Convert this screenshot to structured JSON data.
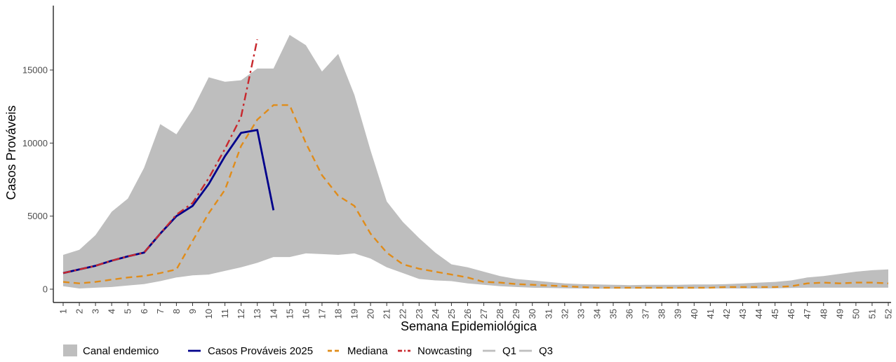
{
  "chart_data": {
    "type": "line",
    "xlabel": "Semana Epidemiológica",
    "ylabel": "Casos Prováveis",
    "x": [
      1,
      2,
      3,
      4,
      5,
      6,
      7,
      8,
      9,
      10,
      11,
      12,
      13,
      14,
      15,
      16,
      17,
      18,
      19,
      20,
      21,
      22,
      23,
      24,
      25,
      26,
      27,
      28,
      29,
      30,
      31,
      32,
      33,
      34,
      35,
      36,
      37,
      38,
      39,
      40,
      41,
      42,
      43,
      44,
      45,
      46,
      47,
      48,
      49,
      50,
      51,
      52
    ],
    "xlim": [
      1,
      52
    ],
    "ylim": [
      0,
      18000
    ],
    "yticks": [
      0,
      5000,
      10000,
      15000
    ],
    "grid": false,
    "legend_position": "bottom",
    "band": {
      "name": "Canal endemico",
      "color": "#bebebe",
      "q1": [
        200,
        50,
        100,
        150,
        250,
        350,
        550,
        800,
        950,
        1000,
        1250,
        1500,
        1800,
        2200,
        2200,
        2450,
        2400,
        2350,
        2450,
        2100,
        1500,
        1100,
        700,
        600,
        550,
        400,
        300,
        200,
        150,
        100,
        80,
        60,
        50,
        40,
        40,
        40,
        40,
        40,
        40,
        40,
        50,
        50,
        50,
        50,
        60,
        80,
        100,
        100,
        100,
        100,
        100,
        100
      ],
      "q3": [
        2350,
        2700,
        3700,
        5300,
        6200,
        8300,
        11300,
        10600,
        12300,
        14500,
        14200,
        14300,
        15100,
        15100,
        17400,
        16700,
        14900,
        16100,
        13300,
        9500,
        6000,
        4600,
        3500,
        2500,
        1700,
        1500,
        1200,
        900,
        700,
        600,
        500,
        400,
        350,
        320,
        300,
        280,
        300,
        300,
        300,
        320,
        320,
        350,
        400,
        450,
        500,
        600,
        800,
        900,
        1050,
        1200,
        1300,
        1350
      ]
    },
    "series": [
      {
        "name": "Casos Prováveis 2025",
        "color": "#00008b",
        "dash": "solid",
        "x": [
          1,
          2,
          3,
          4,
          5,
          6,
          7,
          8,
          9,
          10,
          11,
          12,
          13,
          14
        ],
        "values": [
          1100,
          1350,
          1600,
          1950,
          2250,
          2500,
          3800,
          5000,
          5700,
          7200,
          9100,
          10700,
          10900,
          5400
        ]
      },
      {
        "name": "Mediana",
        "color": "#e08c1a",
        "dash": "dashed",
        "x": [
          1,
          2,
          3,
          4,
          5,
          6,
          7,
          8,
          9,
          10,
          11,
          12,
          13,
          14,
          15,
          16,
          17,
          18,
          19,
          20,
          21,
          22,
          23,
          24,
          25,
          26,
          27,
          28,
          29,
          30,
          31,
          32,
          33,
          34,
          35,
          36,
          37,
          38,
          39,
          40,
          41,
          42,
          43,
          44,
          45,
          46,
          47,
          48,
          49,
          50,
          51,
          52
        ],
        "values": [
          500,
          400,
          500,
          650,
          800,
          900,
          1100,
          1350,
          3300,
          5200,
          6800,
          9800,
          11600,
          12600,
          12600,
          10000,
          7800,
          6400,
          5700,
          3800,
          2500,
          1700,
          1400,
          1200,
          1000,
          800,
          500,
          450,
          350,
          300,
          250,
          200,
          150,
          100,
          100,
          100,
          100,
          100,
          100,
          100,
          100,
          150,
          150,
          150,
          150,
          200,
          400,
          450,
          400,
          450,
          450,
          400
        ]
      },
      {
        "name": "Nowcasting",
        "color": "#c8282d",
        "dash": "dashdot",
        "x": [
          1,
          2,
          3,
          4,
          5,
          6,
          7,
          8,
          9,
          10,
          11,
          12,
          13
        ],
        "values": [
          1100,
          1350,
          1600,
          1950,
          2250,
          2500,
          3800,
          5100,
          5900,
          7600,
          9600,
          11800,
          17100
        ]
      },
      {
        "name": "Q1",
        "color": "#bebebe",
        "dash": "solid",
        "legend_only": true
      },
      {
        "name": "Q3",
        "color": "#bebebe",
        "dash": "solid",
        "legend_only": true
      }
    ]
  }
}
